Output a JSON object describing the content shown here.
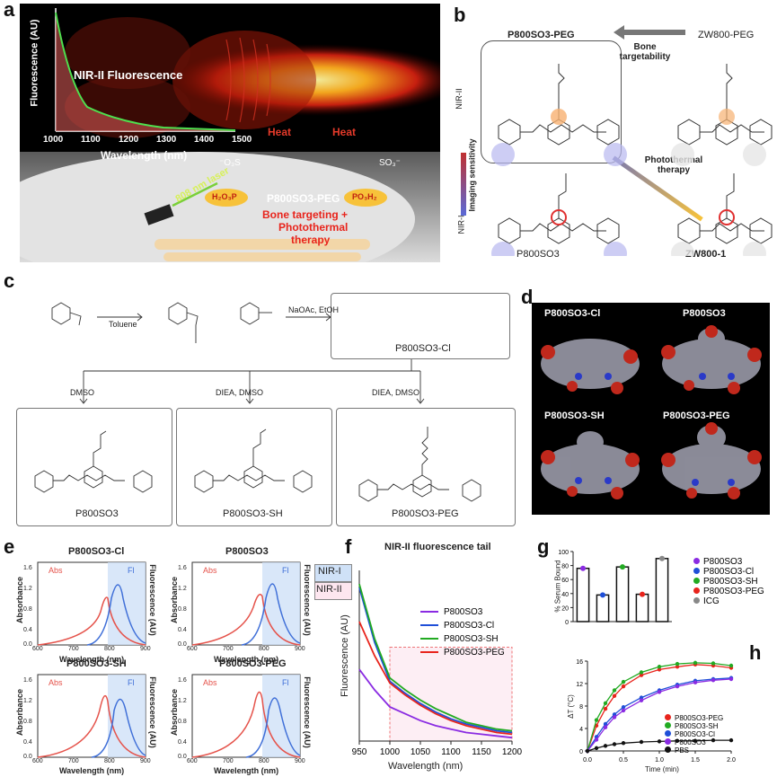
{
  "panels": {
    "a": {
      "label": "a",
      "nir2_label": "NIR-II Fluorescence",
      "ylabel": "Fluorescence (AU)",
      "xlabel": "Wavelength (nm)",
      "xticks": [
        "1000",
        "1100",
        "1200",
        "1300",
        "1400",
        "1500"
      ],
      "heat1": "Heat",
      "heat2": "Heat",
      "laser": "808 nm laser",
      "mol_name": "P800SO3-PEG",
      "bone_text1": "Bone targeting +",
      "bone_text2": "Photothermal",
      "bone_text3": "therapy",
      "po3_left": "H₂O₃P",
      "po3_right": "PO₃H₂",
      "so3_left": "⁻O₃S",
      "so3_right": "SO₃⁻"
    },
    "b": {
      "label": "b",
      "top_left": "P800SO3-PEG",
      "top_right": "ZW800-PEG",
      "bottom_left": "P800SO3",
      "bottom_right": "ZW800-1",
      "arrow_top": "Bone targetability",
      "arrow_diag": "Photothermal therapy",
      "imaging": "Imaging sensitivity",
      "nir2": "NIR-II",
      "nir1": "NIR-I"
    },
    "c": {
      "label": "c",
      "reagent1": "Toluene",
      "reagent2": "NaOAc, EtOH",
      "product": "P800SO3-Cl",
      "cond1": "DMSO",
      "cond2": "DIEA, DMSO",
      "cond3": "DIEA, DMSO",
      "prod1": "P800SO3",
      "prod2": "P800SO3-SH",
      "prod3": "P800SO3-PEG"
    },
    "d": {
      "label": "d",
      "names": [
        "P800SO3-Cl",
        "P800SO3",
        "P800SO3-SH",
        "P800SO3-PEG"
      ]
    },
    "e": {
      "label": "e",
      "titles": [
        "P800SO3-Cl",
        "P800SO3",
        "P800SO3-SH",
        "P800SO3-PEG"
      ],
      "abs": "Abs",
      "fl": "Fl",
      "ylabel": "Absorbance",
      "ylabel2": "Fluorescence (AU)",
      "xlabel": "Wavelength (nm)",
      "xticks": [
        "600",
        "700",
        "800",
        "900"
      ],
      "yticks": [
        "0.0",
        "0.4",
        "0.8",
        "1.2",
        "1.6"
      ],
      "nir1": "NIR-I",
      "nir2": "NIR-II"
    },
    "f": {
      "label": "f",
      "title": "NIR-II fluorescence tail",
      "ylabel": "Fluorescence (AU)",
      "xlabel": "Wavelength (nm)",
      "xticks": [
        "950",
        "1000",
        "1050",
        "1100",
        "1150",
        "1200"
      ],
      "legend": [
        "P800SO3",
        "P800SO3-Cl",
        "P800SO3-SH",
        "P800SO3-PEG"
      ]
    },
    "g": {
      "label": "g",
      "ylabel": "% Serum Bound",
      "yticks": [
        "0",
        "20",
        "40",
        "60",
        "80",
        "100"
      ],
      "legend": [
        "P800SO3",
        "P800SO3-Cl",
        "P800SO3-SH",
        "P800SO3-PEG",
        "ICG"
      ]
    },
    "h": {
      "label": "h",
      "ylabel": "ΔT (°C)",
      "xlabel": "Time (min)",
      "xticks": [
        "0.0",
        "0.5",
        "1.0",
        "1.5",
        "2.0"
      ],
      "yticks": [
        "0",
        "4",
        "8",
        "12",
        "16"
      ],
      "legend": [
        "P800SO3-PEG",
        "P800SO3-SH",
        "P800SO3-Cl",
        "P800SO3",
        "PBS"
      ]
    }
  },
  "colors": {
    "p800so3": "#8a2be2",
    "cl": "#1f4fd8",
    "sh": "#22aa22",
    "peg": "#e8241c",
    "icg": "#888888",
    "pbs": "#111111",
    "abs": "#e5534b",
    "fl": "#3f6fd8"
  },
  "chart_data": [
    {
      "type": "line",
      "title": "NIR-II fluorescence tail",
      "xlabel": "Wavelength (nm)",
      "ylabel": "Fluorescence (AU)",
      "xlim": [
        950,
        1200
      ],
      "x": [
        950,
        975,
        1000,
        1025,
        1050,
        1075,
        1100,
        1125,
        1150,
        1175,
        1200
      ],
      "series": [
        {
          "name": "P800SO3",
          "values": [
            0.42,
            0.3,
            0.2,
            0.16,
            0.12,
            0.09,
            0.07,
            0.05,
            0.04,
            0.03,
            0.02
          ]
        },
        {
          "name": "P800SO3-Cl",
          "values": [
            0.9,
            0.58,
            0.35,
            0.28,
            0.22,
            0.17,
            0.13,
            0.1,
            0.08,
            0.06,
            0.05
          ]
        },
        {
          "name": "P800SO3-SH",
          "values": [
            0.92,
            0.6,
            0.37,
            0.3,
            0.24,
            0.19,
            0.15,
            0.11,
            0.09,
            0.07,
            0.06
          ]
        },
        {
          "name": "P800SO3-PEG",
          "values": [
            0.7,
            0.5,
            0.34,
            0.27,
            0.21,
            0.16,
            0.12,
            0.09,
            0.07,
            0.05,
            0.04
          ]
        }
      ]
    },
    {
      "type": "bar",
      "ylabel": "% Serum Bound",
      "ylim": [
        0,
        100
      ],
      "categories": [
        "P800SO3",
        "P800SO3-Cl",
        "P800SO3-SH",
        "P800SO3-PEG",
        "ICG"
      ],
      "values": [
        76,
        38,
        78,
        39,
        90
      ]
    },
    {
      "type": "line",
      "xlabel": "Time (min)",
      "ylabel": "ΔT (°C)",
      "xlim": [
        0,
        2
      ],
      "ylim": [
        0,
        16
      ],
      "x": [
        0,
        0.125,
        0.25,
        0.375,
        0.5,
        0.75,
        1.0,
        1.25,
        1.5,
        1.75,
        2.0
      ],
      "series": [
        {
          "name": "P800SO3-PEG",
          "values": [
            0,
            4.5,
            7.5,
            9.8,
            11.5,
            13.5,
            14.5,
            15.0,
            15.4,
            15.2,
            14.8
          ]
        },
        {
          "name": "P800SO3-SH",
          "values": [
            0,
            5.5,
            8.5,
            10.8,
            12.3,
            14.0,
            15.0,
            15.5,
            15.7,
            15.6,
            15.2
          ]
        },
        {
          "name": "P800SO3-Cl",
          "values": [
            0,
            2.5,
            4.8,
            6.5,
            7.8,
            9.5,
            10.8,
            11.8,
            12.5,
            12.8,
            13.0
          ]
        },
        {
          "name": "P800SO3",
          "values": [
            0,
            2.0,
            4.2,
            6.0,
            7.2,
            9.0,
            10.5,
            11.5,
            12.2,
            12.6,
            12.8
          ]
        },
        {
          "name": "PBS",
          "values": [
            0,
            0.5,
            0.9,
            1.2,
            1.4,
            1.6,
            1.7,
            1.8,
            1.8,
            1.9,
            1.9
          ]
        }
      ]
    }
  ]
}
